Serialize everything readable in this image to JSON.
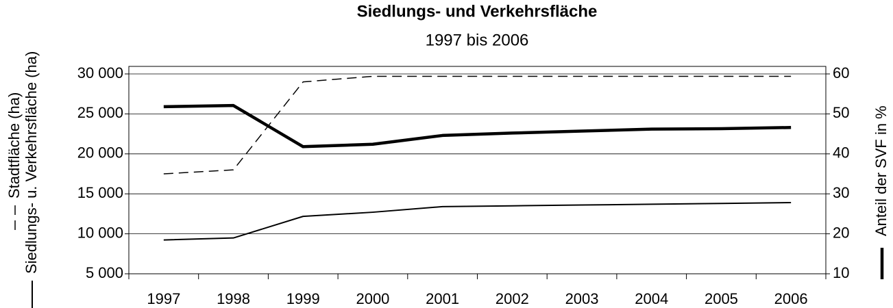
{
  "chart_data": {
    "type": "line",
    "title": "Siedlungs- und Verkehrsfläche",
    "subtitle": "1997 bis 2006",
    "categories": [
      "1997",
      "1998",
      "1999",
      "2000",
      "2001",
      "2002",
      "2003",
      "2004",
      "2005",
      "2006"
    ],
    "series": [
      {
        "name": "Stadtfläche (ha)",
        "color": "#000000",
        "dash": true,
        "width": 1.5,
        "values": [
          17500,
          18000,
          29000,
          29700,
          29700,
          29700,
          29700,
          29700,
          29700,
          29700
        ]
      },
      {
        "name": "Siedlungs- u. Verkehrsfläche (ha)",
        "color": "#000000",
        "dash": false,
        "width": 2,
        "values": [
          9230,
          9480,
          12180,
          12700,
          13400,
          13500,
          13600,
          13700,
          13800,
          13900
        ]
      },
      {
        "name": "Anteil der SVF in %",
        "color": "#000000",
        "dash": false,
        "width": 4.5,
        "axis": "y2",
        "values": [
          51.8,
          52.1,
          41.8,
          42.4,
          44.6,
          45.2,
          45.7,
          46.2,
          46.3,
          46.6
        ]
      }
    ],
    "ylim": [
      5000,
      30000
    ],
    "yticks": [
      {
        "value": 5000,
        "label": "5 000"
      },
      {
        "value": 10000,
        "label": "10 000"
      },
      {
        "value": 15000,
        "label": "15 000"
      },
      {
        "value": 20000,
        "label": "20 000"
      },
      {
        "value": 25000,
        "label": "25 000"
      },
      {
        "value": 30000,
        "label": "30 000"
      }
    ],
    "y2lim": [
      10,
      60
    ],
    "y2ticks": [
      10,
      20,
      30,
      40,
      50,
      60
    ],
    "grid": true
  }
}
